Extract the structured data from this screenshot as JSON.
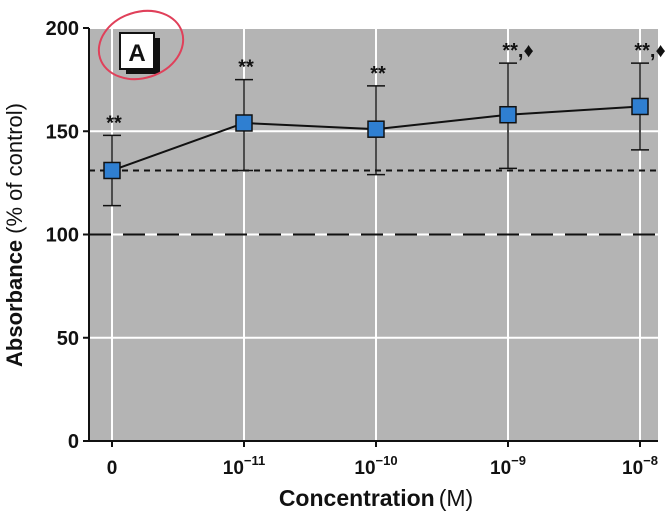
{
  "chart_data": {
    "type": "line",
    "panel_label": "A",
    "xlabel": "Concentration",
    "xlabel_unit": "(M)",
    "ylabel": "Absorbance",
    "ylabel_unit": "(% of control)",
    "ylim": [
      0,
      200
    ],
    "yticks": [
      "0",
      "50",
      "100",
      "150",
      "200"
    ],
    "x_tick_labels": [
      {
        "base": "0",
        "exp": ""
      },
      {
        "base": "10",
        "exp": "−11"
      },
      {
        "base": "10",
        "exp": "−10"
      },
      {
        "base": "10",
        "exp": "−9"
      },
      {
        "base": "10",
        "exp": "−8"
      }
    ],
    "x_values": [
      0,
      1e-11,
      1e-10,
      1e-09,
      1e-08
    ],
    "series": [
      {
        "values": [
          131,
          154,
          151,
          158,
          162
        ],
        "error_low": [
          114,
          131,
          129,
          132,
          141
        ],
        "error_high": [
          148,
          175,
          172,
          183,
          183
        ],
        "annotations": [
          "**",
          "**",
          "**",
          "**,♦",
          "**,♦"
        ]
      }
    ],
    "reference_lines": [
      {
        "value": 131,
        "style": "short-dashed"
      },
      {
        "value": 100,
        "style": "long-dashed"
      }
    ],
    "grid": true,
    "colors": {
      "plot_background": "#b4b4b4",
      "marker_fill": "#2f7fd1",
      "circle_annotation": "#e0405a"
    }
  }
}
